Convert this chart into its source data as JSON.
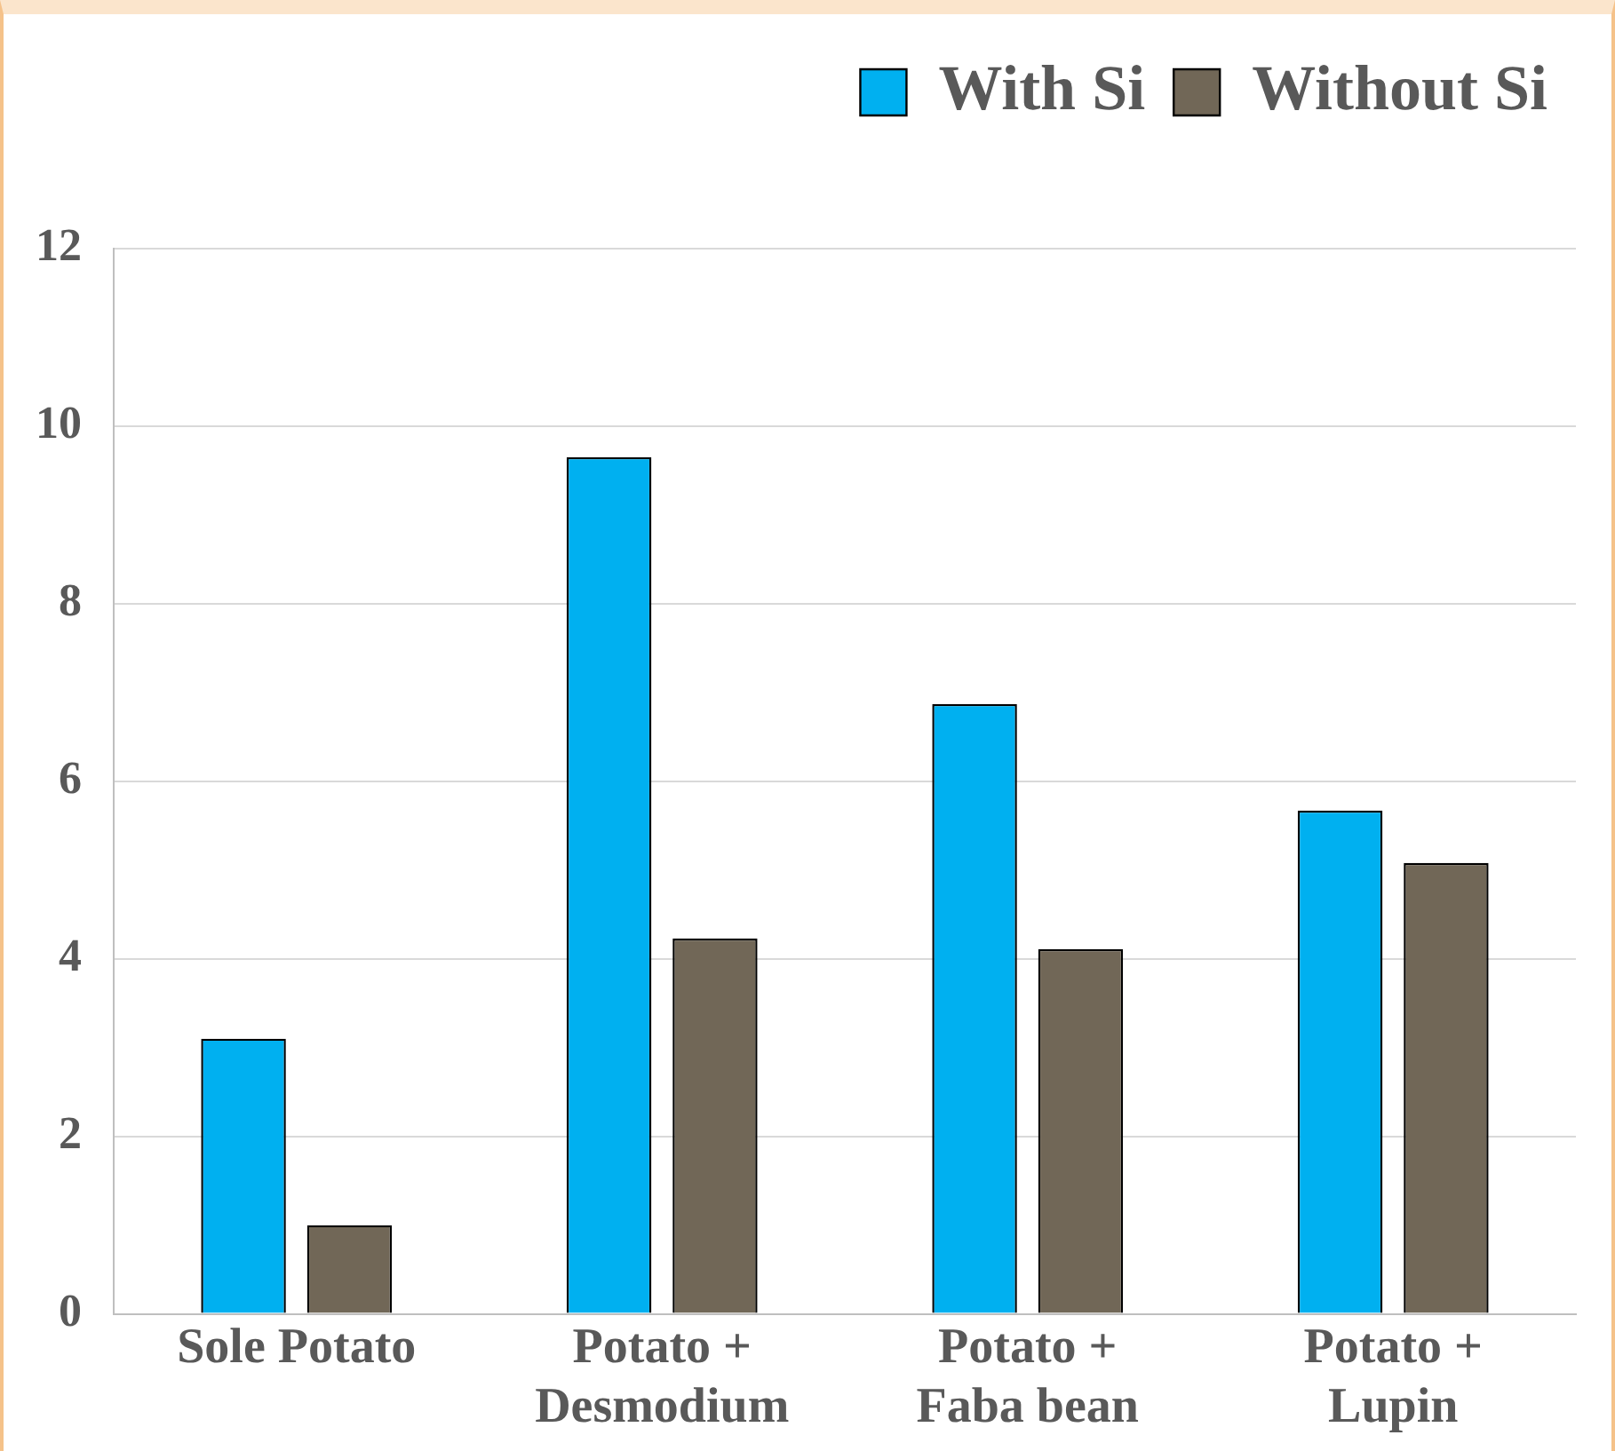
{
  "chart_data": {
    "type": "bar",
    "categories": [
      "Sole Potato",
      "Potato + Desmodium",
      "Potato + Faba bean",
      "Potato + Lupin"
    ],
    "series": [
      {
        "name": "With Si",
        "color": "#00b0f0",
        "values": [
          3.1,
          9.65,
          6.87,
          5.67
        ]
      },
      {
        "name": "Without Si",
        "color": "#716757",
        "values": [
          1.0,
          4.23,
          4.11,
          5.08
        ]
      }
    ],
    "ylim": [
      0,
      12
    ],
    "yticks": [
      0,
      2,
      4,
      6,
      8,
      10,
      12
    ],
    "grid": "y",
    "legend": "top right"
  }
}
